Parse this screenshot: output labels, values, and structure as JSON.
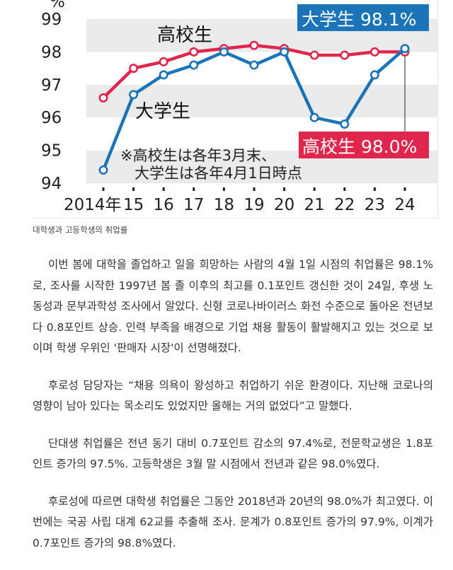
{
  "chart_data": {
    "type": "line",
    "x": [
      "2014年",
      "15",
      "16",
      "17",
      "18",
      "19",
      "20",
      "21",
      "22",
      "23",
      "24"
    ],
    "y_unit": "%",
    "ylim": [
      94,
      99.5
    ],
    "y_ticks": [
      "94",
      "95",
      "96",
      "97",
      "98",
      "99"
    ],
    "grid": "alternating bands",
    "series": [
      {
        "name": "高校生",
        "color": "#e0264d",
        "values": [
          96.6,
          97.5,
          97.7,
          98.0,
          98.1,
          98.2,
          98.1,
          97.9,
          97.9,
          98.0,
          98.0
        ]
      },
      {
        "name": "大学生",
        "color": "#1b73b8",
        "values": [
          94.4,
          96.7,
          97.3,
          97.6,
          98.0,
          97.6,
          98.0,
          96.0,
          95.8,
          97.3,
          98.1
        ]
      }
    ],
    "annotations": {
      "hs_line_label": "高校生",
      "univ_line_label": "大学生",
      "univ_value_box": "大学生 98.1%",
      "hs_value_box": "高校生 98.0%",
      "note_line1": "※高校生は各年3月末、",
      "note_line2": "大学生は各年4月1日時点"
    }
  },
  "caption": "대학생과 고등학생의 취업률",
  "article": {
    "paragraphs": [
      "이번 봄에 대학을 졸업하고 일을 희망하는 사람의 4월 1일 시점의 취업률은 98.1%로, 조사를 시작한 1997년 봄 졸 이후의 최고를 0.1포인트 갱신한 것이 24일, 후생 노동성과 문부과학성 조사에서 알았다. 신형 코로나바이러스 화전 수준으로 돌아온 전년보다 0.8포인트 상승. 인력 부족을 배경으로 기업 채용 활동이 활발해지고 있는 것으로 보이며 학생 우위인 '판매자 시장'이 선명해졌다.",
      "후로성 담당자는 “채용 의욕이 왕성하고 취업하기 쉬운 환경이다. 지난해 코로나의 영향이 남아 있다는 목소리도 있었지만 올해는 거의 없었다”고 말했다.",
      "단대생 취업률은 전년 동기 대비 0.7포인트 감소의 97.4%로, 전문학교생은 1.8포인트 증가의 97.5%. 고등학생은 3월 말 시점에서 전년과 같은 98.0%였다.",
      "후로성에 따르면 대학생 취업률은 그동안 2018년과 20년의 98.0%가 최고였다. 이번에는 국공 사립 대계 62교를 추출해 조사. 문계가 0.8포인트 증가의 97.9%, 이계가 0.7포인트 증가의 98.8%였다."
    ]
  }
}
